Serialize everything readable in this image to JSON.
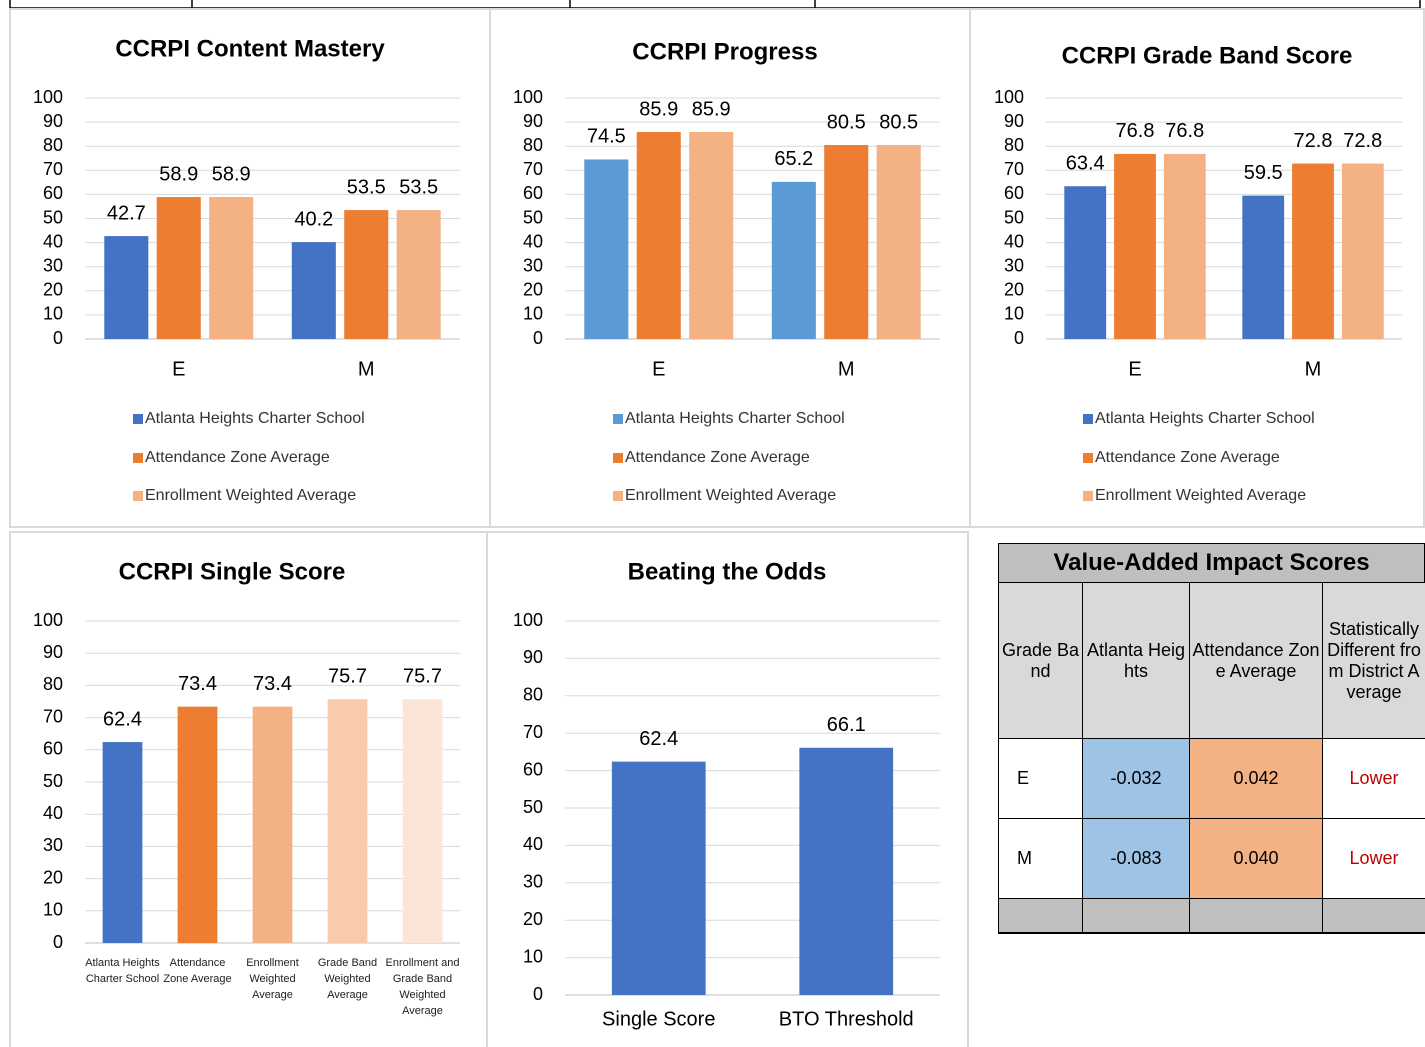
{
  "chart_data": [
    {
      "type": "bar",
      "title": "CCRPI Content Mastery",
      "categories": [
        "E",
        "M"
      ],
      "series": [
        {
          "name": "Atlanta Heights Charter School",
          "color": "#4472c4",
          "values": [
            42.7,
            40.2
          ]
        },
        {
          "name": "Attendance Zone Average",
          "color": "#ed7d31",
          "values": [
            58.9,
            53.5
          ]
        },
        {
          "name": "Enrollment Weighted Average",
          "color": "#f4b183",
          "values": [
            58.9,
            53.5
          ]
        }
      ],
      "ylim": [
        0,
        100
      ],
      "yticks": [
        0,
        10,
        20,
        30,
        40,
        50,
        60,
        70,
        80,
        90,
        100
      ],
      "grid": true,
      "legend": "bottom"
    },
    {
      "type": "bar",
      "title": "CCRPI Progress",
      "categories": [
        "E",
        "M"
      ],
      "series": [
        {
          "name": "Atlanta Heights Charter School",
          "color": "#5b9bd5",
          "values": [
            74.5,
            65.2
          ]
        },
        {
          "name": "Attendance Zone Average",
          "color": "#ed7d31",
          "values": [
            85.9,
            80.5
          ]
        },
        {
          "name": "Enrollment Weighted Average",
          "color": "#f4b183",
          "values": [
            85.9,
            80.5
          ]
        }
      ],
      "ylim": [
        0,
        100
      ],
      "yticks": [
        0,
        10,
        20,
        30,
        40,
        50,
        60,
        70,
        80,
        90,
        100
      ],
      "grid": true,
      "legend": "bottom"
    },
    {
      "type": "bar",
      "title": "CCRPI Grade Band Score",
      "categories": [
        "E",
        "M"
      ],
      "series": [
        {
          "name": "Atlanta Heights Charter School",
          "color": "#4472c4",
          "values": [
            63.4,
            59.5
          ]
        },
        {
          "name": "Attendance Zone Average",
          "color": "#ed7d31",
          "values": [
            76.8,
            72.8
          ]
        },
        {
          "name": "Enrollment Weighted Average",
          "color": "#f4b183",
          "values": [
            76.8,
            72.8
          ]
        }
      ],
      "ylim": [
        0,
        100
      ],
      "yticks": [
        0,
        10,
        20,
        30,
        40,
        50,
        60,
        70,
        80,
        90,
        100
      ],
      "grid": true,
      "legend": "bottom"
    },
    {
      "type": "bar",
      "title": "CCRPI Single Score",
      "categories": [
        "Atlanta Heights Charter School",
        "Attendance Zone Average",
        "Enrollment Weighted Average",
        "Grade Band Weighted Average",
        "Enrollment and Grade Band Weighted Average"
      ],
      "values": [
        62.4,
        73.4,
        73.4,
        75.7,
        75.7
      ],
      "colors": [
        "#4472c4",
        "#ed7d31",
        "#f4b183",
        "#f8cbad",
        "#fbe5d6"
      ],
      "ylim": [
        0,
        100
      ],
      "yticks": [
        0,
        10,
        20,
        30,
        40,
        50,
        60,
        70,
        80,
        90,
        100
      ],
      "grid": true
    },
    {
      "type": "bar",
      "title": "Beating the Odds",
      "categories": [
        "Single Score",
        "BTO Threshold"
      ],
      "values": [
        62.4,
        66.1
      ],
      "color": "#4472c4",
      "ylim": [
        0,
        100
      ],
      "yticks": [
        0,
        10,
        20,
        30,
        40,
        50,
        60,
        70,
        80,
        90,
        100
      ],
      "grid": true
    }
  ],
  "table": {
    "title": "Value-Added Impact Scores",
    "header": [
      "Grade Band",
      "Atlanta Heights",
      "Attendance Zone Average",
      "Statistically Different from District Average"
    ],
    "rows": [
      [
        "E",
        "-0.032",
        "0.042",
        "Lower"
      ],
      [
        "M",
        "-0.083",
        "0.040",
        "Lower"
      ]
    ]
  }
}
